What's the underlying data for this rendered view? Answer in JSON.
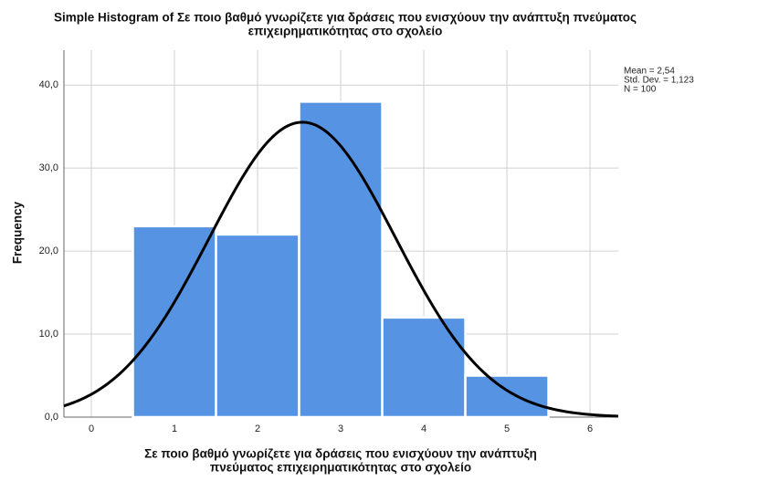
{
  "chart_data": {
    "type": "histogram",
    "title": [
      "Simple Histogram of Σε ποιο βαθμό γνωρίζετε για δράσεις που ενισχύουν την ανάπτυξη πνεύματος",
      "επιχειρηματικότητας στο σχολείο"
    ],
    "x_label": [
      "Σε ποιο βαθμό γνωρίζετε για δράσεις που ενισχύουν την ανάπτυξη",
      "πνεύματος επιχειρηματικότητας στο σχολείο"
    ],
    "y_label": "Frequency",
    "bins": [
      0.5,
      1.5,
      2.5,
      3.5,
      4.5,
      5.5
    ],
    "values": [
      23,
      22,
      38,
      12,
      5
    ],
    "color": "#5694e3",
    "curve_color": "#000000",
    "xlim": [
      -0.33,
      6.34
    ],
    "ylim": [
      0,
      44.2
    ],
    "xticks": [
      0,
      1,
      2,
      3,
      4,
      5,
      6
    ],
    "yticks": [
      {
        "value": 0,
        "label": "0,0"
      },
      {
        "value": 10,
        "label": "10,0"
      },
      {
        "value": 20,
        "label": "20,0"
      },
      {
        "value": 30,
        "label": "30,0"
      },
      {
        "value": 40,
        "label": "40,0"
      }
    ],
    "grid": true,
    "stats": {
      "mean": {
        "value": 2.54,
        "label": "Mean = 2,54"
      },
      "std_dev": {
        "value": 1.123,
        "label": "Std. Dev. = 1,123"
      },
      "n": {
        "value": 100,
        "label": "N = 100"
      }
    }
  }
}
